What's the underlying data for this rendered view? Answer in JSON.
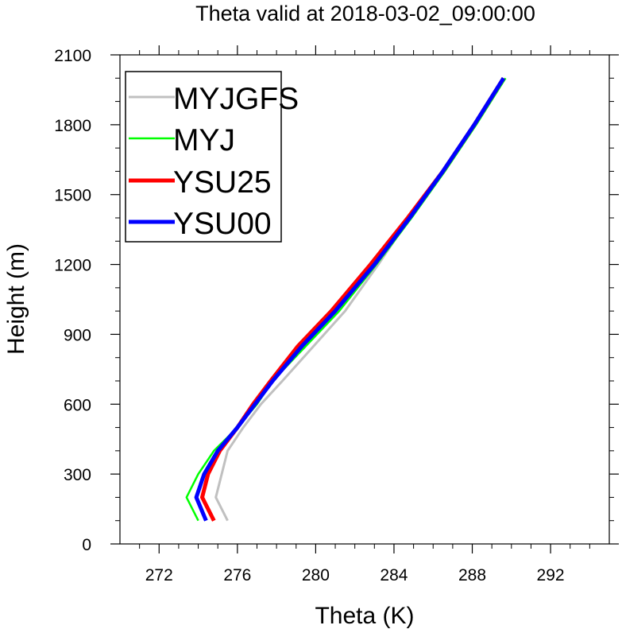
{
  "chart_data": {
    "type": "line",
    "title": "Theta valid at 2018-03-02_09:00:00",
    "xlabel": "Theta (K)",
    "ylabel": "Height (m)",
    "xlim": [
      270,
      295
    ],
    "ylim": [
      0,
      2100
    ],
    "x_ticks": [
      272,
      276,
      280,
      284,
      288,
      292
    ],
    "y_ticks": [
      0,
      300,
      600,
      900,
      1200,
      1500,
      1800,
      2100
    ],
    "x_minor_step": 1,
    "y_minor_step": 100,
    "grid": false,
    "legend_position": "top-left",
    "series": [
      {
        "name": "MYJGFS",
        "color": "#c0c0c0",
        "x": [
          275.5,
          274.9,
          275.2,
          275.5,
          276.3,
          277.2,
          278.3,
          279.9,
          281.5,
          283.2,
          284.8,
          286.5,
          288.1,
          289.6
        ],
        "y": [
          100,
          200,
          300,
          400,
          500,
          600,
          700,
          850,
          1000,
          1200,
          1400,
          1600,
          1800,
          2000
        ]
      },
      {
        "name": "MYJ",
        "color": "#00ff00",
        "x": [
          274.0,
          273.4,
          274.0,
          274.8,
          276.0,
          277.0,
          277.8,
          279.5,
          281.2,
          283.1,
          284.9,
          286.6,
          288.2,
          289.7
        ],
        "y": [
          100,
          200,
          300,
          400,
          500,
          600,
          700,
          850,
          1000,
          1200,
          1400,
          1600,
          1800,
          2000
        ]
      },
      {
        "name": "YSU25",
        "color": "#ff0000",
        "x": [
          274.8,
          274.2,
          274.5,
          275.1,
          276.0,
          276.8,
          277.7,
          279.1,
          280.8,
          282.8,
          284.7,
          286.5,
          288.1,
          289.6
        ],
        "y": [
          100,
          200,
          300,
          400,
          500,
          600,
          700,
          850,
          1000,
          1200,
          1400,
          1600,
          1800,
          2000
        ]
      },
      {
        "name": "YSU00",
        "color": "#0000ff",
        "x": [
          274.4,
          273.9,
          274.3,
          275.0,
          276.0,
          276.9,
          277.8,
          279.3,
          281.0,
          283.0,
          284.8,
          286.5,
          288.1,
          289.6
        ],
        "y": [
          100,
          200,
          300,
          400,
          500,
          600,
          700,
          850,
          1000,
          1200,
          1400,
          1600,
          1800,
          2000
        ]
      }
    ]
  }
}
